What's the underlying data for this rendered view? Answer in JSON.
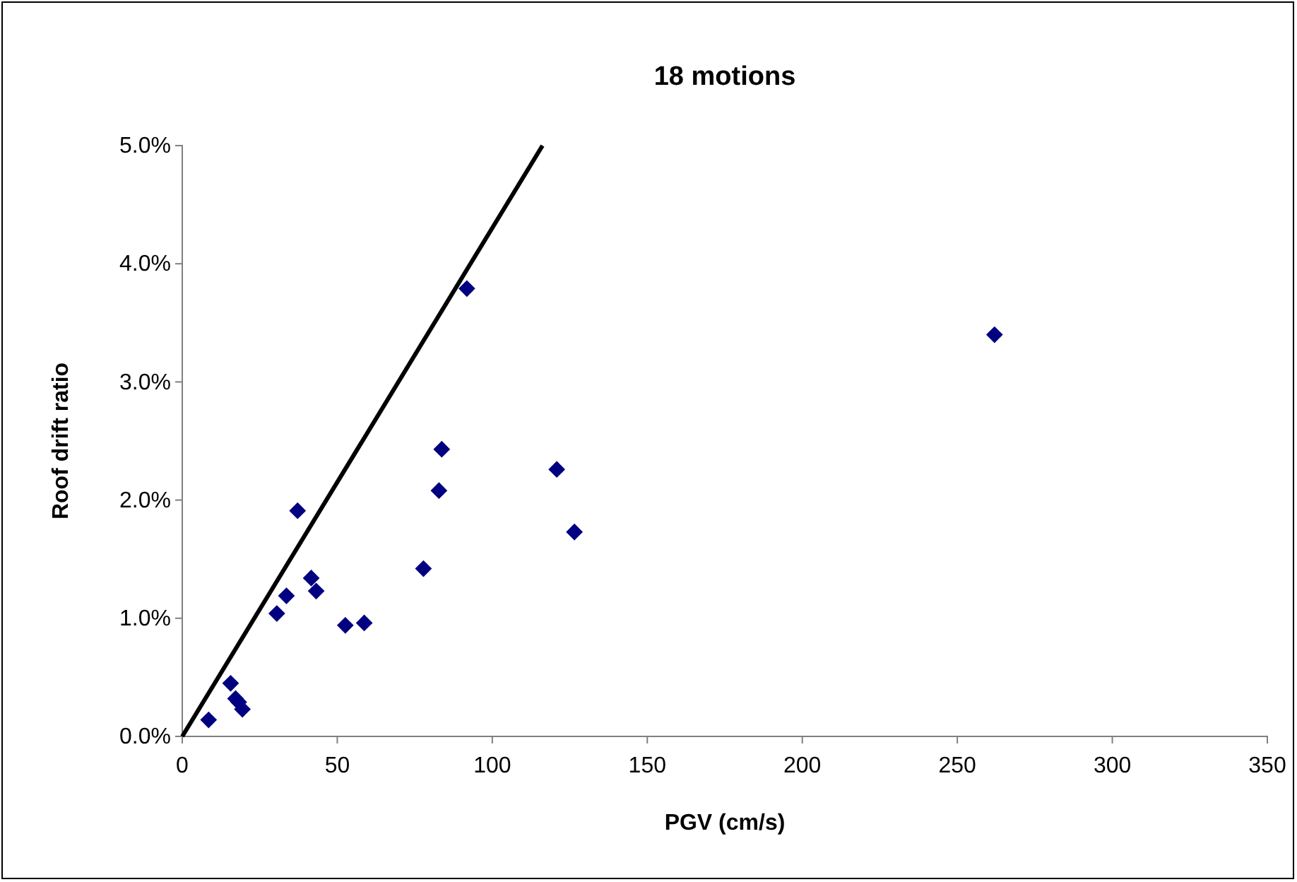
{
  "chart_data": {
    "type": "scatter",
    "title": "18 motions",
    "xlabel": "PGV (cm/s)",
    "ylabel": "Roof drift ratio",
    "xlim": [
      0,
      350
    ],
    "xticks": [
      0,
      50,
      100,
      150,
      200,
      250,
      300,
      350
    ],
    "ylim": [
      0,
      5
    ],
    "yticks": [
      {
        "value": 0,
        "label": "0.0%"
      },
      {
        "value": 1,
        "label": "1.0%"
      },
      {
        "value": 2,
        "label": "2.0%"
      },
      {
        "value": 3,
        "label": "3.0%"
      },
      {
        "value": 4,
        "label": "4.0%"
      },
      {
        "value": 5,
        "label": "5.0%"
      }
    ],
    "grid": false,
    "marker": "diamond",
    "series": [
      {
        "color": "#000080",
        "x": [
          8.5,
          15.6,
          17.2,
          18.2,
          19.4,
          30.5,
          33.6,
          37.2,
          41.6,
          43.2,
          52.6,
          58.7,
          77.8,
          82.8,
          83.7,
          91.8,
          120.8,
          126.5,
          262
        ],
        "values": [
          0.14,
          0.45,
          0.32,
          0.29,
          0.23,
          1.04,
          1.19,
          1.91,
          1.34,
          1.23,
          0.94,
          0.96,
          1.42,
          2.08,
          2.43,
          3.79,
          2.26,
          1.73,
          3.4
        ]
      },
      {
        "type": "line",
        "color": "#000000",
        "marker": "none",
        "line_style": "solid",
        "x": [
          0,
          116.2
        ],
        "values": [
          0,
          5
        ]
      }
    ]
  }
}
